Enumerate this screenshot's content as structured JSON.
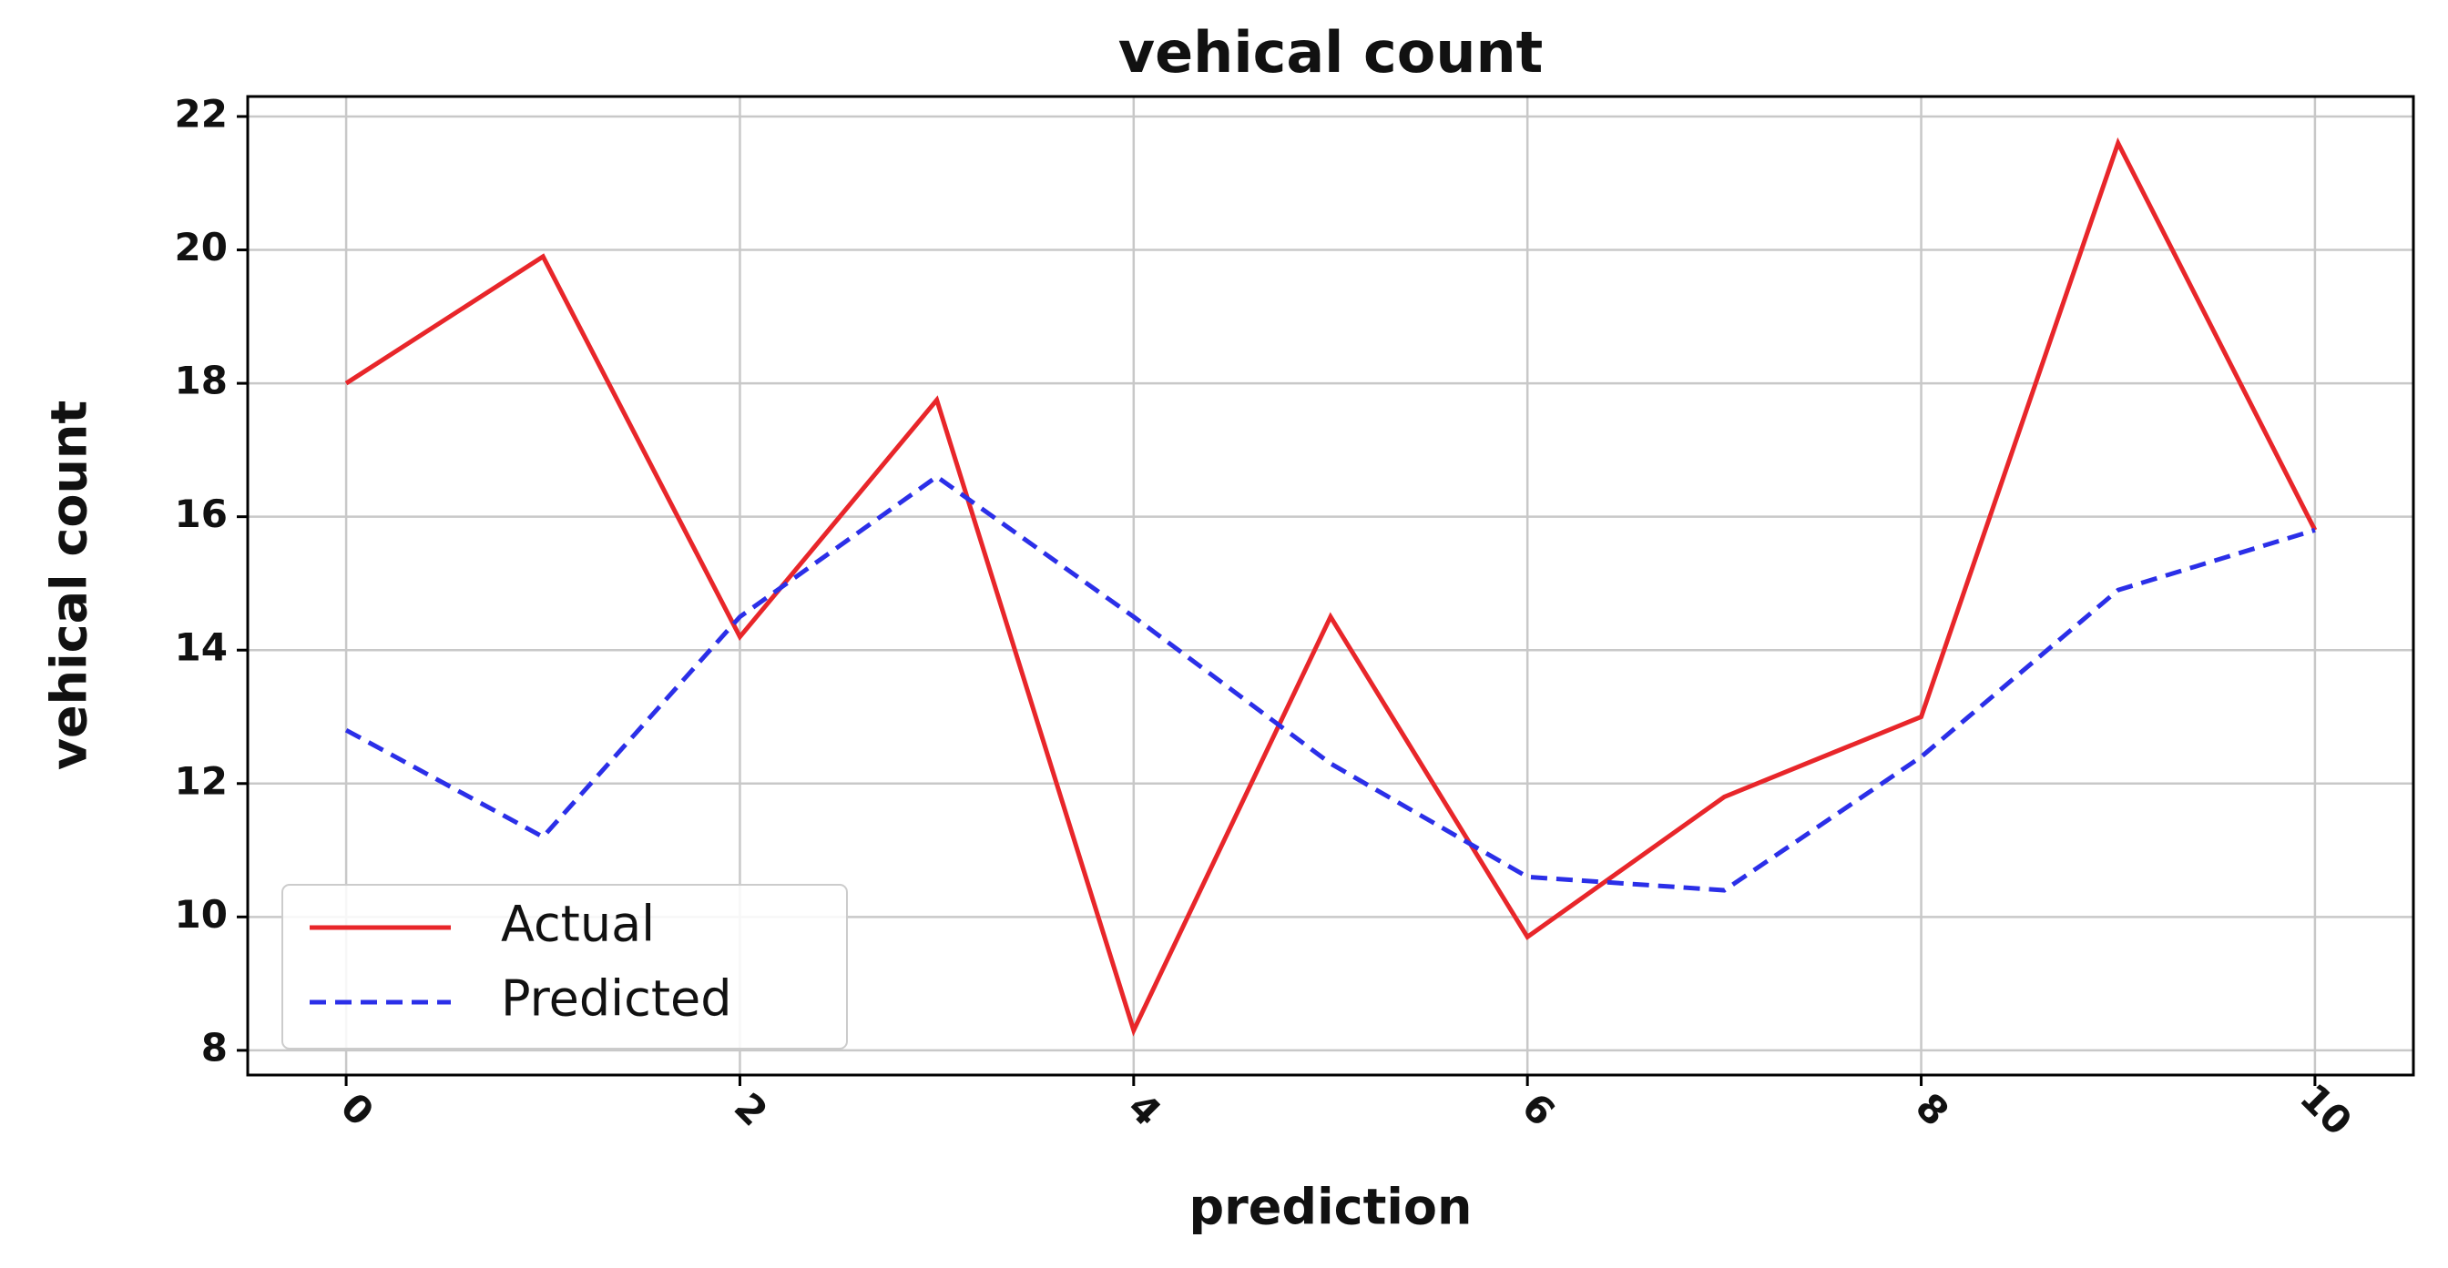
{
  "chart_data": {
    "type": "line",
    "title": "vehical count",
    "xlabel": "prediction",
    "ylabel": "vehical count",
    "x": [
      0,
      1,
      2,
      3,
      4,
      5,
      6,
      7,
      8,
      9,
      10
    ],
    "series": [
      {
        "name": "Actual",
        "color": "#e8262a",
        "dash": "solid",
        "values": [
          18.0,
          19.9,
          14.2,
          17.75,
          8.3,
          14.5,
          9.7,
          11.8,
          13.0,
          21.6,
          15.8
        ]
      },
      {
        "name": "Predicted",
        "color": "#2b2fe8",
        "dash": "dashed",
        "values": [
          12.8,
          11.2,
          14.5,
          16.6,
          14.5,
          12.3,
          10.6,
          10.4,
          12.4,
          14.9,
          15.8
        ]
      }
    ],
    "xlim": [
      -0.5,
      10.5
    ],
    "ylim": [
      7.63,
      22.3
    ],
    "xticks": [
      0,
      2,
      4,
      6,
      8,
      10
    ],
    "yticks": [
      8,
      10,
      12,
      14,
      16,
      18,
      20,
      22
    ],
    "grid": true,
    "legend": "lower left"
  }
}
